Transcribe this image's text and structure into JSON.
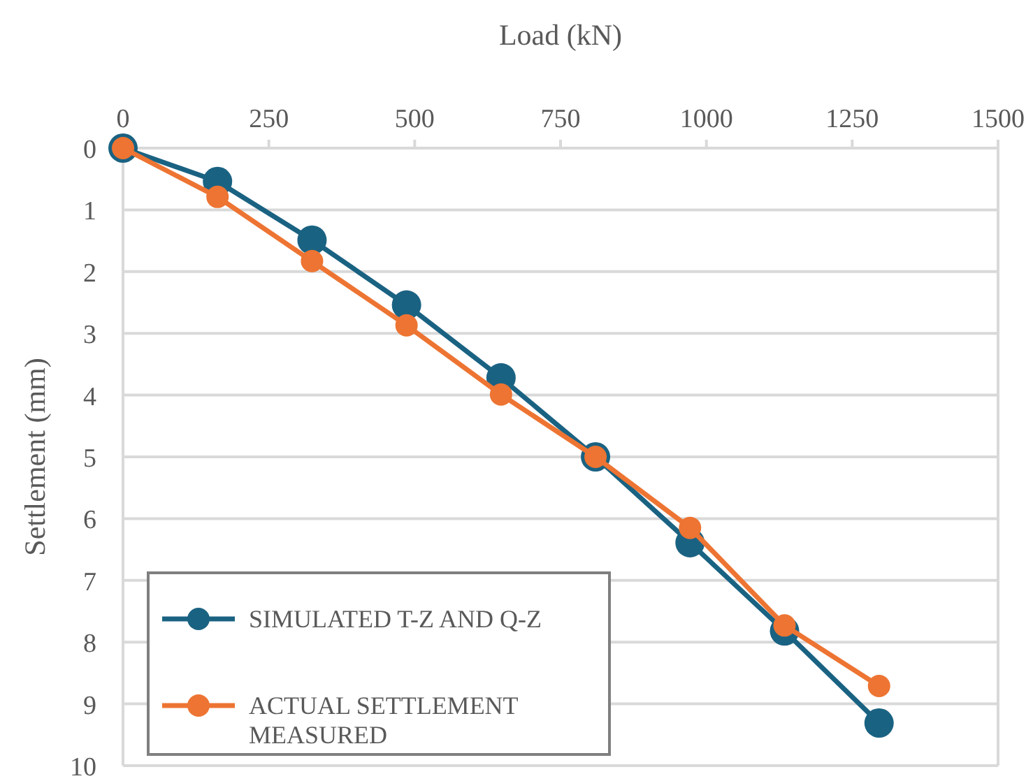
{
  "chart_data": {
    "type": "line",
    "xlabel": "Load (kN)",
    "ylabel": "Settlement (mm)",
    "x": [
      0,
      162,
      324,
      486,
      648,
      810,
      972,
      1134,
      1296
    ],
    "series": [
      {
        "name": "SIMULATED T-Z AND Q-Z",
        "color": "#1a6282",
        "values": [
          0,
          0.54,
          1.49,
          2.54,
          3.72,
          5.0,
          6.39,
          7.82,
          9.31
        ]
      },
      {
        "name": "ACTUAL SETTLEMENT MEASURED",
        "color": "#ed7432",
        "values": [
          0,
          0.79,
          1.83,
          2.87,
          3.99,
          5.0,
          6.15,
          7.73,
          8.71
        ]
      }
    ],
    "xlim": [
      0,
      1500
    ],
    "xticks": [
      0,
      250,
      500,
      750,
      1000,
      1250,
      1500
    ],
    "ylim": [
      10,
      0
    ],
    "yticks": [
      0,
      1,
      2,
      3,
      4,
      5,
      6,
      7,
      8,
      9,
      10
    ],
    "grid": "y",
    "legend": "bottom left",
    "marker": "circle",
    "line_style": "solid"
  }
}
